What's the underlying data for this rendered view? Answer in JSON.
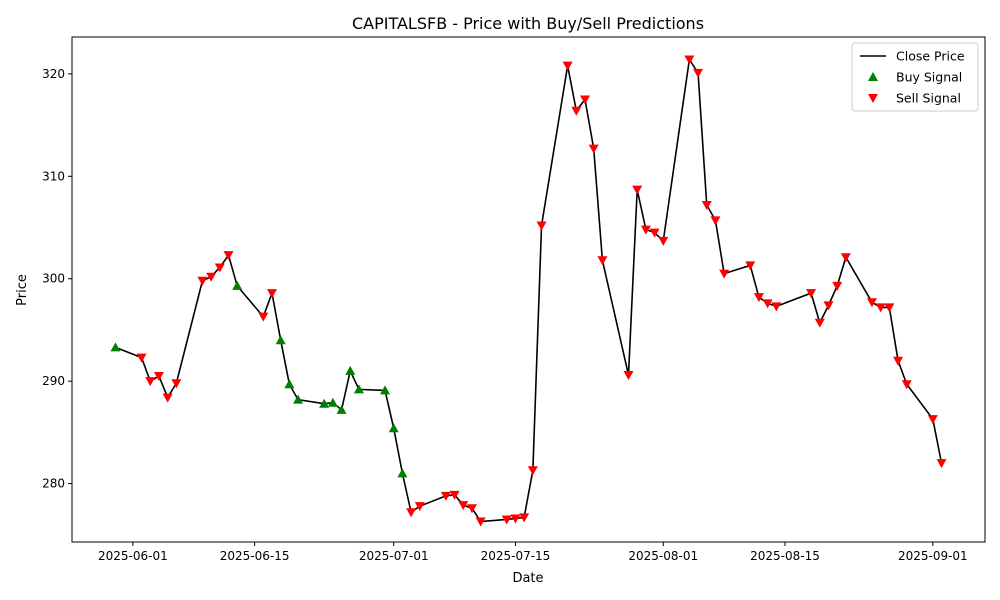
{
  "chart_data": {
    "type": "line",
    "title": "CAPITALSFB - Price with Buy/Sell Predictions",
    "xlabel": "Date",
    "ylabel": "Price",
    "xlim": [
      "2025-05-25",
      "2025-09-07"
    ],
    "ylim": [
      274.3,
      323.6
    ],
    "x_ticks": [
      "2025-06-01",
      "2025-06-15",
      "2025-07-01",
      "2025-07-15",
      "2025-08-01",
      "2025-08-15",
      "2025-09-01"
    ],
    "y_ticks": [
      280,
      290,
      300,
      310,
      320
    ],
    "grid": false,
    "legend_position": "top-right",
    "series": [
      {
        "name": "Close Price",
        "kind": "line",
        "color": "#000000",
        "points": [
          [
            "2025-05-30",
            293.3
          ],
          [
            "2025-06-02",
            292.3
          ],
          [
            "2025-06-03",
            290.0
          ],
          [
            "2025-06-04",
            290.5
          ],
          [
            "2025-06-05",
            288.4
          ],
          [
            "2025-06-06",
            289.8
          ],
          [
            "2025-06-09",
            299.8
          ],
          [
            "2025-06-10",
            300.2
          ],
          [
            "2025-06-11",
            301.1
          ],
          [
            "2025-06-12",
            302.3
          ],
          [
            "2025-06-13",
            299.3
          ],
          [
            "2025-06-16",
            296.3
          ],
          [
            "2025-06-17",
            298.6
          ],
          [
            "2025-06-18",
            294.0
          ],
          [
            "2025-06-19",
            289.7
          ],
          [
            "2025-06-20",
            288.2
          ],
          [
            "2025-06-23",
            287.8
          ],
          [
            "2025-06-24",
            287.9
          ],
          [
            "2025-06-25",
            287.2
          ],
          [
            "2025-06-26",
            291.0
          ],
          [
            "2025-06-27",
            289.2
          ],
          [
            "2025-06-30",
            289.1
          ],
          [
            "2025-07-01",
            285.4
          ],
          [
            "2025-07-02",
            281.0
          ],
          [
            "2025-07-03",
            277.2
          ],
          [
            "2025-07-04",
            277.8
          ],
          [
            "2025-07-07",
            278.8
          ],
          [
            "2025-07-08",
            278.9
          ],
          [
            "2025-07-09",
            277.9
          ],
          [
            "2025-07-10",
            277.6
          ],
          [
            "2025-07-11",
            276.3
          ],
          [
            "2025-07-14",
            276.5
          ],
          [
            "2025-07-15",
            276.6
          ],
          [
            "2025-07-16",
            276.7
          ],
          [
            "2025-07-17",
            281.3
          ],
          [
            "2025-07-18",
            305.2
          ],
          [
            "2025-07-21",
            320.8
          ],
          [
            "2025-07-22",
            316.4
          ],
          [
            "2025-07-23",
            317.5
          ],
          [
            "2025-07-24",
            312.7
          ],
          [
            "2025-07-25",
            301.8
          ],
          [
            "2025-07-28",
            290.6
          ],
          [
            "2025-07-29",
            308.7
          ],
          [
            "2025-07-30",
            304.8
          ],
          [
            "2025-07-31",
            304.5
          ],
          [
            "2025-08-01",
            303.7
          ],
          [
            "2025-08-04",
            321.4
          ],
          [
            "2025-08-05",
            320.1
          ],
          [
            "2025-08-06",
            307.2
          ],
          [
            "2025-08-07",
            305.7
          ],
          [
            "2025-08-08",
            300.5
          ],
          [
            "2025-08-11",
            301.3
          ],
          [
            "2025-08-12",
            298.2
          ],
          [
            "2025-08-13",
            297.6
          ],
          [
            "2025-08-14",
            297.3
          ],
          [
            "2025-08-18",
            298.6
          ],
          [
            "2025-08-19",
            295.7
          ],
          [
            "2025-08-20",
            297.4
          ],
          [
            "2025-08-21",
            299.3
          ],
          [
            "2025-08-22",
            302.1
          ],
          [
            "2025-08-25",
            297.7
          ],
          [
            "2025-08-26",
            297.2
          ],
          [
            "2025-08-27",
            297.2
          ],
          [
            "2025-08-28",
            292.0
          ],
          [
            "2025-08-29",
            289.7
          ],
          [
            "2025-09-01",
            286.3
          ],
          [
            "2025-09-02",
            282.0
          ]
        ]
      },
      {
        "name": "Buy Signal",
        "kind": "scatter",
        "marker": "triangle-up",
        "color": "#008000",
        "points": [
          [
            "2025-05-30",
            293.3
          ],
          [
            "2025-06-13",
            299.3
          ],
          [
            "2025-06-18",
            294.0
          ],
          [
            "2025-06-19",
            289.7
          ],
          [
            "2025-06-20",
            288.2
          ],
          [
            "2025-06-23",
            287.8
          ],
          [
            "2025-06-24",
            287.9
          ],
          [
            "2025-06-25",
            287.2
          ],
          [
            "2025-06-26",
            291.0
          ],
          [
            "2025-06-27",
            289.2
          ],
          [
            "2025-06-30",
            289.1
          ],
          [
            "2025-07-01",
            285.4
          ],
          [
            "2025-07-02",
            281.0
          ]
        ]
      },
      {
        "name": "Sell Signal",
        "kind": "scatter",
        "marker": "triangle-down",
        "color": "#ff0000",
        "points": [
          [
            "2025-06-02",
            292.3
          ],
          [
            "2025-06-03",
            290.0
          ],
          [
            "2025-06-04",
            290.5
          ],
          [
            "2025-06-05",
            288.4
          ],
          [
            "2025-06-06",
            289.8
          ],
          [
            "2025-06-09",
            299.8
          ],
          [
            "2025-06-10",
            300.2
          ],
          [
            "2025-06-11",
            301.1
          ],
          [
            "2025-06-12",
            302.3
          ],
          [
            "2025-06-16",
            296.3
          ],
          [
            "2025-06-17",
            298.6
          ],
          [
            "2025-07-03",
            277.2
          ],
          [
            "2025-07-04",
            277.8
          ],
          [
            "2025-07-07",
            278.8
          ],
          [
            "2025-07-08",
            278.9
          ],
          [
            "2025-07-09",
            277.9
          ],
          [
            "2025-07-10",
            277.6
          ],
          [
            "2025-07-11",
            276.3
          ],
          [
            "2025-07-14",
            276.5
          ],
          [
            "2025-07-15",
            276.6
          ],
          [
            "2025-07-16",
            276.7
          ],
          [
            "2025-07-17",
            281.3
          ],
          [
            "2025-07-18",
            305.2
          ],
          [
            "2025-07-21",
            320.8
          ],
          [
            "2025-07-22",
            316.4
          ],
          [
            "2025-07-23",
            317.5
          ],
          [
            "2025-07-24",
            312.7
          ],
          [
            "2025-07-25",
            301.8
          ],
          [
            "2025-07-28",
            290.6
          ],
          [
            "2025-07-29",
            308.7
          ],
          [
            "2025-07-30",
            304.8
          ],
          [
            "2025-07-31",
            304.5
          ],
          [
            "2025-08-01",
            303.7
          ],
          [
            "2025-08-04",
            321.4
          ],
          [
            "2025-08-05",
            320.1
          ],
          [
            "2025-08-06",
            307.2
          ],
          [
            "2025-08-07",
            305.7
          ],
          [
            "2025-08-08",
            300.5
          ],
          [
            "2025-08-11",
            301.3
          ],
          [
            "2025-08-12",
            298.2
          ],
          [
            "2025-08-13",
            297.6
          ],
          [
            "2025-08-14",
            297.3
          ],
          [
            "2025-08-18",
            298.6
          ],
          [
            "2025-08-19",
            295.7
          ],
          [
            "2025-08-20",
            297.4
          ],
          [
            "2025-08-21",
            299.3
          ],
          [
            "2025-08-22",
            302.1
          ],
          [
            "2025-08-25",
            297.7
          ],
          [
            "2025-08-26",
            297.2
          ],
          [
            "2025-08-27",
            297.2
          ],
          [
            "2025-08-28",
            292.0
          ],
          [
            "2025-08-29",
            289.7
          ],
          [
            "2025-09-01",
            286.3
          ],
          [
            "2025-09-02",
            282.0
          ]
        ]
      }
    ]
  }
}
